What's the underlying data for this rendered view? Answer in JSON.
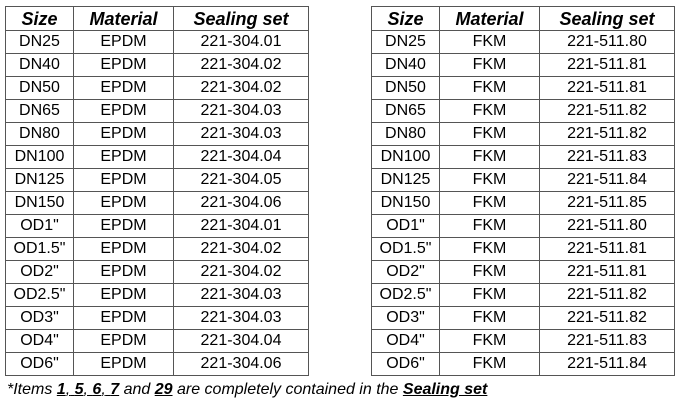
{
  "left_table": {
    "headers": [
      "Size",
      "Material",
      "Sealing set"
    ],
    "rows": [
      [
        "DN25",
        "EPDM",
        "221-304.01"
      ],
      [
        "DN40",
        "EPDM",
        "221-304.02"
      ],
      [
        "DN50",
        "EPDM",
        "221-304.02"
      ],
      [
        "DN65",
        "EPDM",
        "221-304.03"
      ],
      [
        "DN80",
        "EPDM",
        "221-304.03"
      ],
      [
        "DN100",
        "EPDM",
        "221-304.04"
      ],
      [
        "DN125",
        "EPDM",
        "221-304.05"
      ],
      [
        "DN150",
        "EPDM",
        "221-304.06"
      ],
      [
        "OD1\"",
        "EPDM",
        "221-304.01"
      ],
      [
        "OD1.5\"",
        "EPDM",
        "221-304.02"
      ],
      [
        "OD2\"",
        "EPDM",
        "221-304.02"
      ],
      [
        "OD2.5\"",
        "EPDM",
        "221-304.03"
      ],
      [
        "OD3\"",
        "EPDM",
        "221-304.03"
      ],
      [
        "OD4\"",
        "EPDM",
        "221-304.04"
      ],
      [
        "OD6\"",
        "EPDM",
        "221-304.06"
      ]
    ]
  },
  "right_table": {
    "headers": [
      "Size",
      "Material",
      "Sealing set"
    ],
    "rows": [
      [
        "DN25",
        "FKM",
        "221-511.80"
      ],
      [
        "DN40",
        "FKM",
        "221-511.81"
      ],
      [
        "DN50",
        "FKM",
        "221-511.81"
      ],
      [
        "DN65",
        "FKM",
        "221-511.82"
      ],
      [
        "DN80",
        "FKM",
        "221-511.82"
      ],
      [
        "DN100",
        "FKM",
        "221-511.83"
      ],
      [
        "DN125",
        "FKM",
        "221-511.84"
      ],
      [
        "DN150",
        "FKM",
        "221-511.85"
      ],
      [
        "OD1\"",
        "FKM",
        "221-511.80"
      ],
      [
        "OD1.5\"",
        "FKM",
        "221-511.81"
      ],
      [
        "OD2\"",
        "FKM",
        "221-511.81"
      ],
      [
        "OD2.5\"",
        "FKM",
        "221-511.82"
      ],
      [
        "OD3\"",
        "FKM",
        "221-511.82"
      ],
      [
        "OD4\"",
        "FKM",
        "221-511.83"
      ],
      [
        "OD6\"",
        "FKM",
        "221-511.84"
      ]
    ]
  },
  "footnote": {
    "prefix": "*Items ",
    "item_1": "1",
    "sep_1": ",",
    "item_2": "5",
    "sep_2": ",",
    "item_3": "6",
    "sep_3": ",",
    "item_4": "7",
    "and_text": " and ",
    "item_5": "29",
    "middle_text": " are completely contained in the ",
    "term": "Sealing set"
  }
}
